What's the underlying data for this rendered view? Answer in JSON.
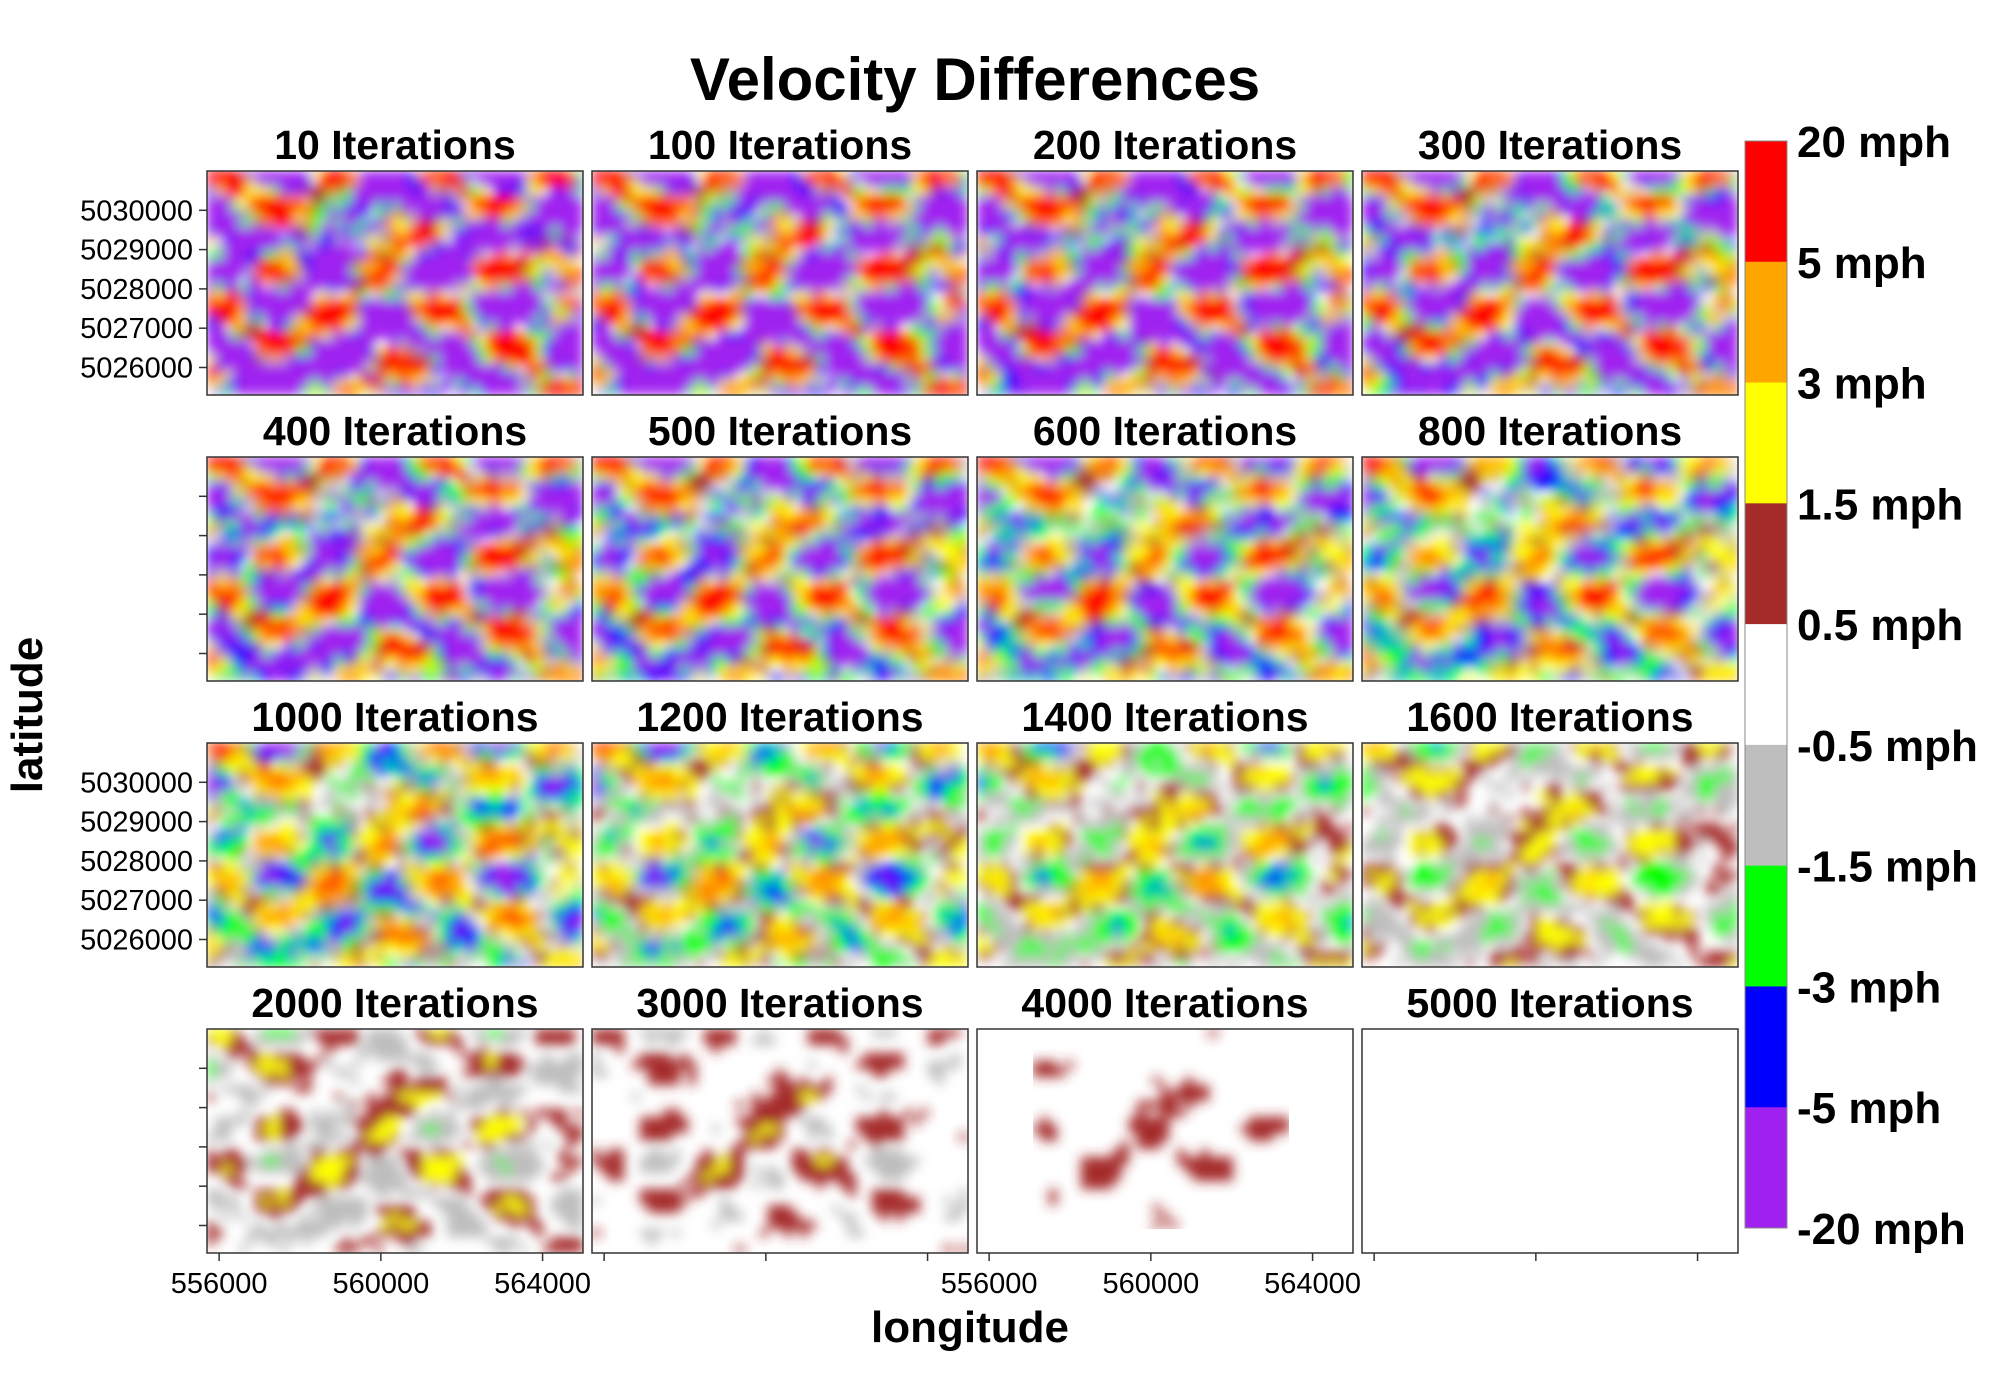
{
  "chart_data": {
    "type": "heatmap",
    "title": "Velocity Differences",
    "xlabel": "longitude",
    "ylabel": "latitude",
    "x_ticks": [
      556000,
      560000,
      564000
    ],
    "y_ticks": [
      5026000,
      5027000,
      5028000,
      5029000,
      5030000
    ],
    "xlim": [
      555700,
      565000
    ],
    "ylim": [
      5025300,
      5031000
    ],
    "panels": [
      {
        "label": "10 Iterations",
        "iterations": 10
      },
      {
        "label": "100 Iterations",
        "iterations": 100
      },
      {
        "label": "200 Iterations",
        "iterations": 200
      },
      {
        "label": "300 Iterations",
        "iterations": 300
      },
      {
        "label": "400 Iterations",
        "iterations": 400
      },
      {
        "label": "500 Iterations",
        "iterations": 500
      },
      {
        "label": "600 Iterations",
        "iterations": 600
      },
      {
        "label": "800 Iterations",
        "iterations": 800
      },
      {
        "label": "1000 Iterations",
        "iterations": 1000
      },
      {
        "label": "1200 Iterations",
        "iterations": 1200
      },
      {
        "label": "1400 Iterations",
        "iterations": 1400
      },
      {
        "label": "1600 Iterations",
        "iterations": 1600
      },
      {
        "label": "2000 Iterations",
        "iterations": 2000
      },
      {
        "label": "3000 Iterations",
        "iterations": 3000
      },
      {
        "label": "4000 Iterations",
        "iterations": 4000
      },
      {
        "label": "5000 Iterations",
        "iterations": 5000
      }
    ],
    "legend": {
      "position": "right",
      "bins": [
        {
          "from": 5,
          "to": 20,
          "color": "#FF0000"
        },
        {
          "from": 3,
          "to": 5,
          "color": "#FFA500"
        },
        {
          "from": 1.5,
          "to": 3,
          "color": "#FFFF00"
        },
        {
          "from": 0.5,
          "to": 1.5,
          "color": "#A52A2A"
        },
        {
          "from": -0.5,
          "to": 0.5,
          "color": "#FFFFFF"
        },
        {
          "from": -1.5,
          "to": -0.5,
          "color": "#BEBEBE"
        },
        {
          "from": -3,
          "to": -1.5,
          "color": "#00FF00"
        },
        {
          "from": -5,
          "to": -3,
          "color": "#0000FF"
        },
        {
          "from": -20,
          "to": -5,
          "color": "#A020F0"
        }
      ],
      "labels": [
        "20 mph",
        "5 mph",
        "3 mph",
        "1.5 mph",
        "0.5 mph",
        "-0.5 mph",
        "-1.5 mph",
        "-3 mph",
        "-5 mph",
        "-20 mph"
      ]
    }
  }
}
